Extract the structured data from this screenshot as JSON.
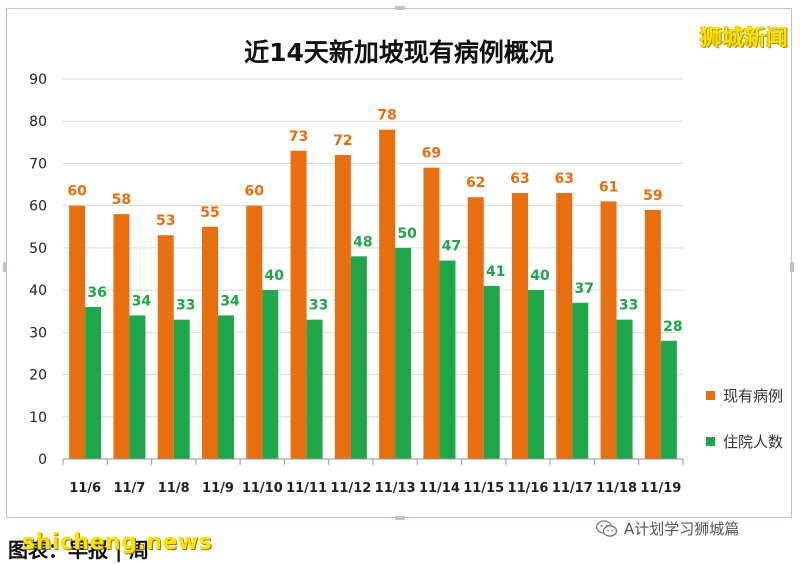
{
  "brand": "狮城新闻",
  "wechat_label": "A计划学习狮城篇",
  "caption": "图表：早报 | 周",
  "watermark": "shicheng.news",
  "colors": {
    "current": "#e76f10",
    "hospital": "#20a64a"
  },
  "chart_data": {
    "type": "bar",
    "title": "近14天新加坡现有病例概况",
    "categories": [
      "11/6",
      "11/7",
      "11/8",
      "11/9",
      "11/10",
      "11/11",
      "11/12",
      "11/13",
      "11/14",
      "11/15",
      "11/16",
      "11/17",
      "11/18",
      "11/19"
    ],
    "series": [
      {
        "name": "现有病例",
        "values": [
          60,
          58,
          53,
          55,
          60,
          73,
          72,
          78,
          69,
          62,
          63,
          63,
          61,
          59
        ]
      },
      {
        "name": "住院人数",
        "values": [
          36,
          34,
          33,
          34,
          40,
          33,
          48,
          50,
          47,
          41,
          40,
          37,
          33,
          28
        ]
      }
    ],
    "ylim": [
      0,
      90
    ],
    "yticks": [
      0,
      10,
      20,
      30,
      40,
      50,
      60,
      70,
      80,
      90
    ],
    "grid": true,
    "legend_position": "right"
  }
}
